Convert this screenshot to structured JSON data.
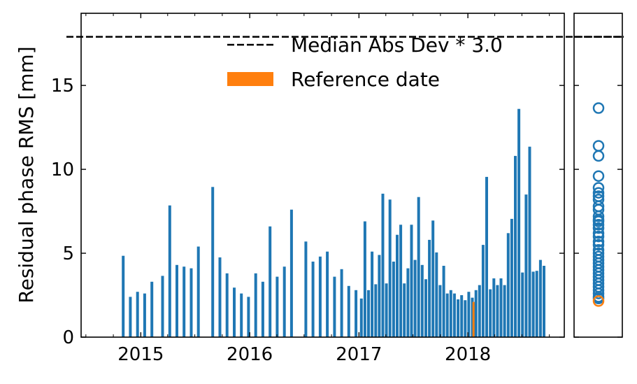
{
  "colors": {
    "bar": "#1f77b4",
    "reference": "#ff7f0e",
    "threshold": "#000000"
  },
  "chart_data": [
    {
      "type": "bar",
      "ylabel": "Residual phase RMS [mm]",
      "ylim": [
        0,
        19.3
      ],
      "xlim": [
        "2014-06-15",
        "2018-11-20"
      ],
      "yticks": [
        0,
        5,
        10,
        15
      ],
      "xtick_labels": [
        "2015",
        "2016",
        "2017",
        "2018"
      ],
      "xtick_dates": [
        "2015-01-01",
        "2016-01-01",
        "2017-01-01",
        "2018-01-01"
      ],
      "threshold": {
        "value": 17.9,
        "label": "Median Abs Dev * 3.0"
      },
      "legend": {
        "placement": "top-right",
        "reference_label": "Reference date"
      },
      "reference_date": "2018-01-21",
      "dates": [
        "2014-11-03",
        "2014-11-27",
        "2014-12-21",
        "2015-01-14",
        "2015-02-07",
        "2015-03-15",
        "2015-04-08",
        "2015-05-02",
        "2015-05-26",
        "2015-06-19",
        "2015-07-13",
        "2015-08-30",
        "2015-09-23",
        "2015-10-17",
        "2015-11-10",
        "2015-12-04",
        "2015-12-28",
        "2016-01-21",
        "2016-02-14",
        "2016-03-09",
        "2016-04-02",
        "2016-04-26",
        "2016-05-20",
        "2016-07-07",
        "2016-07-31",
        "2016-08-24",
        "2016-09-17",
        "2016-10-11",
        "2016-11-04",
        "2016-11-28",
        "2016-12-22",
        "2017-01-09",
        "2017-01-21",
        "2017-02-02",
        "2017-02-14",
        "2017-02-26",
        "2017-03-10",
        "2017-03-22",
        "2017-04-03",
        "2017-04-15",
        "2017-04-27",
        "2017-05-09",
        "2017-05-21",
        "2017-06-02",
        "2017-06-14",
        "2017-06-26",
        "2017-07-08",
        "2017-07-20",
        "2017-08-01",
        "2017-08-13",
        "2017-08-25",
        "2017-09-06",
        "2017-09-18",
        "2017-09-30",
        "2017-10-12",
        "2017-10-24",
        "2017-11-05",
        "2017-11-17",
        "2017-11-29",
        "2017-12-11",
        "2017-12-23",
        "2018-01-04",
        "2018-01-16",
        "2018-01-21",
        "2018-01-28",
        "2018-02-09",
        "2018-02-21",
        "2018-03-05",
        "2018-03-17",
        "2018-03-29",
        "2018-04-10",
        "2018-04-22",
        "2018-05-04",
        "2018-05-16",
        "2018-05-28",
        "2018-06-09",
        "2018-06-21",
        "2018-07-03",
        "2018-07-15",
        "2018-07-27",
        "2018-08-08",
        "2018-08-20",
        "2018-09-01",
        "2018-09-13"
      ],
      "values": [
        4.85,
        2.4,
        2.7,
        2.6,
        3.3,
        3.65,
        7.85,
        4.3,
        4.2,
        4.1,
        5.4,
        8.95,
        4.75,
        3.8,
        2.95,
        2.6,
        2.4,
        3.8,
        3.3,
        6.6,
        3.6,
        4.2,
        7.6,
        5.7,
        4.5,
        4.8,
        5.1,
        3.6,
        4.05,
        3.05,
        2.8,
        2.3,
        6.9,
        2.8,
        5.1,
        3.15,
        4.9,
        8.55,
        3.2,
        8.2,
        4.5,
        6.1,
        6.7,
        3.2,
        4.1,
        6.7,
        4.6,
        8.35,
        4.3,
        3.45,
        5.8,
        6.95,
        5.05,
        3.1,
        4.25,
        2.6,
        2.8,
        2.6,
        2.25,
        2.5,
        2.2,
        2.7,
        2.35,
        2.1,
        2.8,
        3.1,
        5.5,
        9.55,
        2.85,
        3.5,
        3.1,
        3.5,
        3.1,
        6.2,
        7.05,
        10.8,
        13.6,
        3.85,
        8.5,
        11.35,
        3.9,
        3.95,
        4.6,
        4.25
      ]
    },
    {
      "type": "scatter",
      "ylim": [
        0,
        19.3
      ],
      "values": [
        13.65,
        11.4,
        10.8,
        9.6,
        8.9,
        8.6,
        8.4,
        8.2,
        7.8,
        7.6,
        7.2,
        7.0,
        6.9,
        6.7,
        6.5,
        6.2,
        6.0,
        5.7,
        5.5,
        5.2,
        5.0,
        4.8,
        4.6,
        4.4,
        4.2,
        4.0,
        3.8,
        3.6,
        3.4,
        3.2,
        3.0,
        2.8,
        2.6,
        2.4,
        2.3
      ],
      "reference_value": 2.15
    }
  ]
}
